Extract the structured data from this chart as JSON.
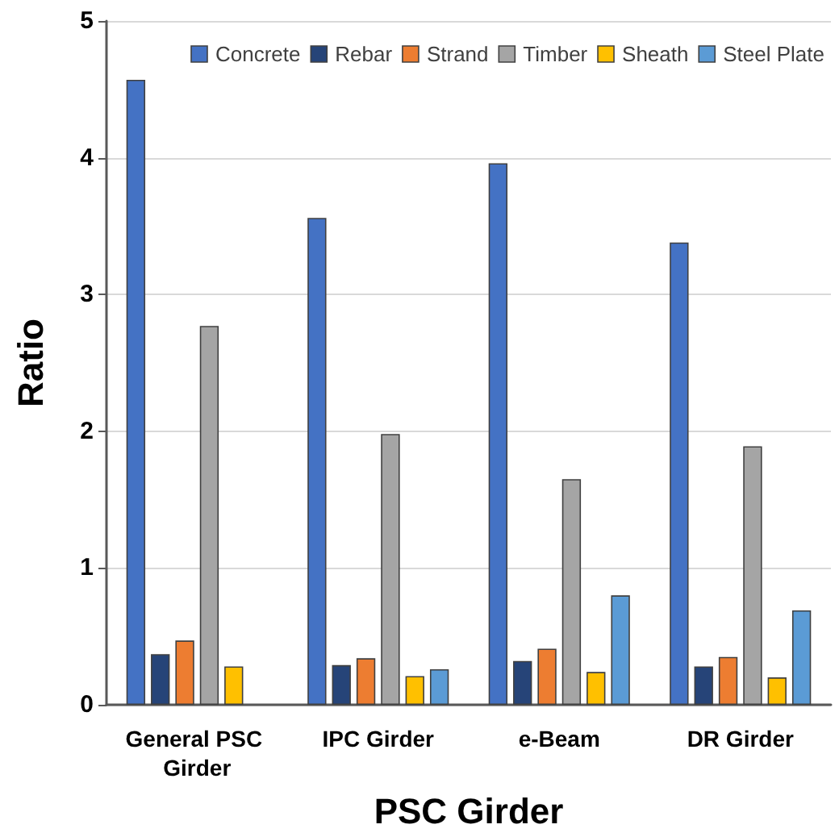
{
  "chart_data": {
    "type": "bar",
    "xlabel": "PSC Girder",
    "ylabel": "Ratio",
    "categories": [
      "General PSC Girder",
      "IPC Girder",
      "e-Beam",
      "DR Girder"
    ],
    "series": [
      {
        "name": "Concrete",
        "color": "#4472c4",
        "values": [
          4.57,
          3.56,
          3.96,
          3.38
        ]
      },
      {
        "name": "Rebar",
        "color": "#264478",
        "values": [
          0.37,
          0.29,
          0.32,
          0.28
        ]
      },
      {
        "name": "Strand",
        "color": "#ed7d31",
        "values": [
          0.47,
          0.34,
          0.41,
          0.35
        ]
      },
      {
        "name": "Timber",
        "color": "#a5a5a5",
        "values": [
          2.77,
          1.98,
          1.65,
          1.89
        ]
      },
      {
        "name": "Sheath",
        "color": "#ffc000",
        "values": [
          0.28,
          0.21,
          0.24,
          0.2
        ]
      },
      {
        "name": "Steel Plate",
        "color": "#5b9bd5",
        "values": [
          null,
          0.26,
          0.8,
          0.69
        ]
      }
    ],
    "ylim": [
      0,
      5
    ],
    "yticks": [
      0,
      1,
      2,
      3,
      4,
      5
    ],
    "grid": "y",
    "legend": "top right"
  }
}
